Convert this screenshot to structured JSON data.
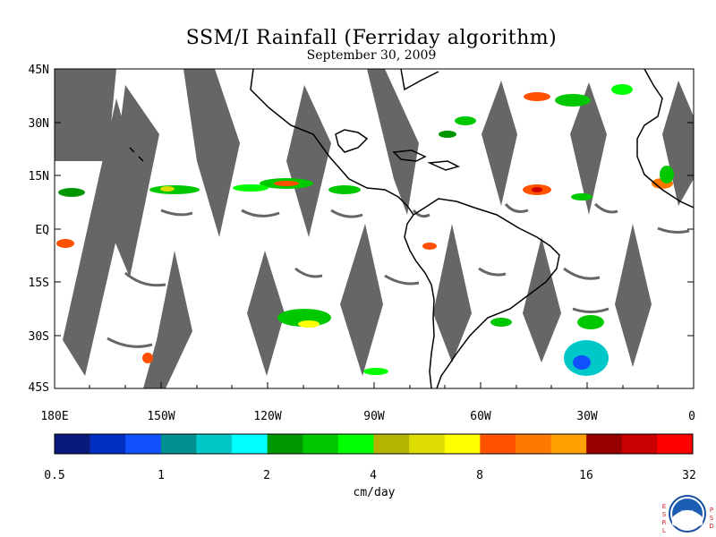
{
  "title": "SSM/I Rainfall (Ferriday algorithm)",
  "subtitle": "September 30, 2009",
  "lat_labels": [
    "45N",
    "30N",
    "15N",
    "EQ",
    "15S",
    "30S",
    "45S"
  ],
  "lon_labels": [
    "180E",
    "150W",
    "120W",
    "90W",
    "60W",
    "30W",
    "0"
  ],
  "colorbar": {
    "tick_labels": [
      "0.5",
      "1",
      "2",
      "4",
      "8",
      "16",
      "32"
    ],
    "unit_label": "cm/day",
    "colors": [
      "#0a1a7a",
      "#0030c0",
      "#1050ff",
      "#009090",
      "#00c8c8",
      "#00ffff",
      "#009600",
      "#00c800",
      "#00ff00",
      "#b4b400",
      "#dcdc00",
      "#ffff00",
      "#ff5000",
      "#ff7800",
      "#ffa000",
      "#960000",
      "#c80000",
      "#ff0000"
    ]
  },
  "logo": {
    "left_letters": "ESRL",
    "right_letters": "PSD",
    "text": "NOAA"
  },
  "colors": {
    "no_data": "#666666",
    "coast": "#000000"
  }
}
